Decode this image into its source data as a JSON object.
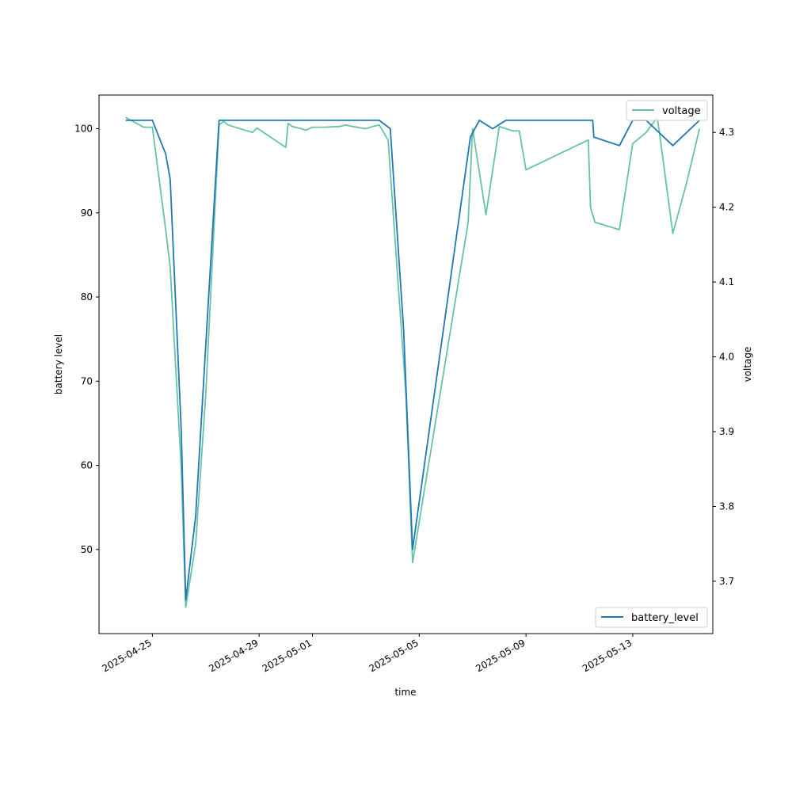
{
  "chart_data": {
    "type": "line",
    "title": "",
    "xlabel": "time",
    "ylabel": "battery level",
    "y2label": "voltage",
    "xlim": [
      "2025-04-23",
      "2025-05-16"
    ],
    "ylim": [
      40,
      104
    ],
    "y2lim": [
      3.63,
      4.35
    ],
    "x_ticks": [
      "2025-04-25",
      "2025-04-29",
      "2025-05-01",
      "2025-05-05",
      "2025-05-09",
      "2025-05-13"
    ],
    "y_ticks": [
      50,
      60,
      70,
      80,
      90,
      100
    ],
    "y2_ticks": [
      3.7,
      3.8,
      3.9,
      4.0,
      4.1,
      4.2,
      4.3
    ],
    "grid": false,
    "legends": [
      {
        "series": "voltage",
        "placement": "upper right"
      },
      {
        "series": "battery_level",
        "placement": "lower right"
      }
    ],
    "series": [
      {
        "name": "battery_level",
        "axis": "left",
        "color": "#1f77b4",
        "points": [
          [
            "2025-04-24T00:00",
            101
          ],
          [
            "2025-04-25T00:00",
            101
          ],
          [
            "2025-04-25T12:00",
            97
          ],
          [
            "2025-04-25T16:00",
            94
          ],
          [
            "2025-04-26T02:00",
            64
          ],
          [
            "2025-04-26T06:00",
            44
          ],
          [
            "2025-04-26T15:00",
            54
          ],
          [
            "2025-04-27T12:00",
            101
          ],
          [
            "2025-05-03T12:00",
            101
          ],
          [
            "2025-05-03T22:00",
            100
          ],
          [
            "2025-05-04T10:00",
            76
          ],
          [
            "2025-05-04T18:00",
            50
          ],
          [
            "2025-05-06T22:00",
            99
          ],
          [
            "2025-05-07T06:00",
            101
          ],
          [
            "2025-05-07T18:00",
            100
          ],
          [
            "2025-05-08T06:00",
            101
          ],
          [
            "2025-05-11T12:00",
            101
          ],
          [
            "2025-05-11T13:00",
            99
          ],
          [
            "2025-05-12T12:00",
            98
          ],
          [
            "2025-05-13T00:00",
            101
          ],
          [
            "2025-05-13T12:00",
            101
          ],
          [
            "2025-05-14T12:00",
            98
          ],
          [
            "2025-05-15T12:00",
            101
          ]
        ]
      },
      {
        "name": "voltage",
        "axis": "right",
        "color": "#66c2a5",
        "points": [
          [
            "2025-04-24T00:00",
            4.32
          ],
          [
            "2025-04-24T16:00",
            4.307
          ],
          [
            "2025-04-25T00:00",
            4.307
          ],
          [
            "2025-04-25T12:00",
            4.17
          ],
          [
            "2025-04-25T16:00",
            4.12
          ],
          [
            "2025-04-26T02:00",
            3.85
          ],
          [
            "2025-04-26T06:00",
            3.665
          ],
          [
            "2025-04-26T15:00",
            3.75
          ],
          [
            "2025-04-27T00:00",
            3.95
          ],
          [
            "2025-04-27T12:00",
            4.31
          ],
          [
            "2025-04-27T16:00",
            4.315
          ],
          [
            "2025-04-27T20:00",
            4.31
          ],
          [
            "2025-04-28T18:00",
            4.3
          ],
          [
            "2025-04-28T22:00",
            4.306
          ],
          [
            "2025-04-30T00:00",
            4.28
          ],
          [
            "2025-04-30T02:00",
            4.312
          ],
          [
            "2025-04-30T06:00",
            4.308
          ],
          [
            "2025-04-30T14:00",
            4.305
          ],
          [
            "2025-04-30T18:00",
            4.303
          ],
          [
            "2025-05-01T00:00",
            4.307
          ],
          [
            "2025-05-01T12:00",
            4.307
          ],
          [
            "2025-05-02T00:00",
            4.308
          ],
          [
            "2025-05-02T06:00",
            4.31
          ],
          [
            "2025-05-02T12:00",
            4.308
          ],
          [
            "2025-05-03T00:00",
            4.305
          ],
          [
            "2025-05-03T06:00",
            4.308
          ],
          [
            "2025-05-03T12:00",
            4.31
          ],
          [
            "2025-05-03T20:00",
            4.29
          ],
          [
            "2025-05-04T12:00",
            3.95
          ],
          [
            "2025-05-04T18:00",
            3.725
          ],
          [
            "2025-05-06T20:00",
            4.18
          ],
          [
            "2025-05-07T00:00",
            4.305
          ],
          [
            "2025-05-07T12:00",
            4.19
          ],
          [
            "2025-05-08T00:00",
            4.308
          ],
          [
            "2025-05-08T12:00",
            4.302
          ],
          [
            "2025-05-08T18:00",
            4.302
          ],
          [
            "2025-05-09T00:00",
            4.25
          ],
          [
            "2025-05-11T08:00",
            4.29
          ],
          [
            "2025-05-11T10:00",
            4.2
          ],
          [
            "2025-05-11T14:00",
            4.18
          ],
          [
            "2025-05-12T12:00",
            4.17
          ],
          [
            "2025-05-13T00:00",
            4.285
          ],
          [
            "2025-05-13T12:00",
            4.3
          ],
          [
            "2025-05-13T22:00",
            4.32
          ],
          [
            "2025-05-14T00:00",
            4.3
          ],
          [
            "2025-05-14T12:00",
            4.165
          ],
          [
            "2025-05-15T00:00",
            4.23
          ],
          [
            "2025-05-15T12:00",
            4.305
          ]
        ]
      }
    ]
  }
}
